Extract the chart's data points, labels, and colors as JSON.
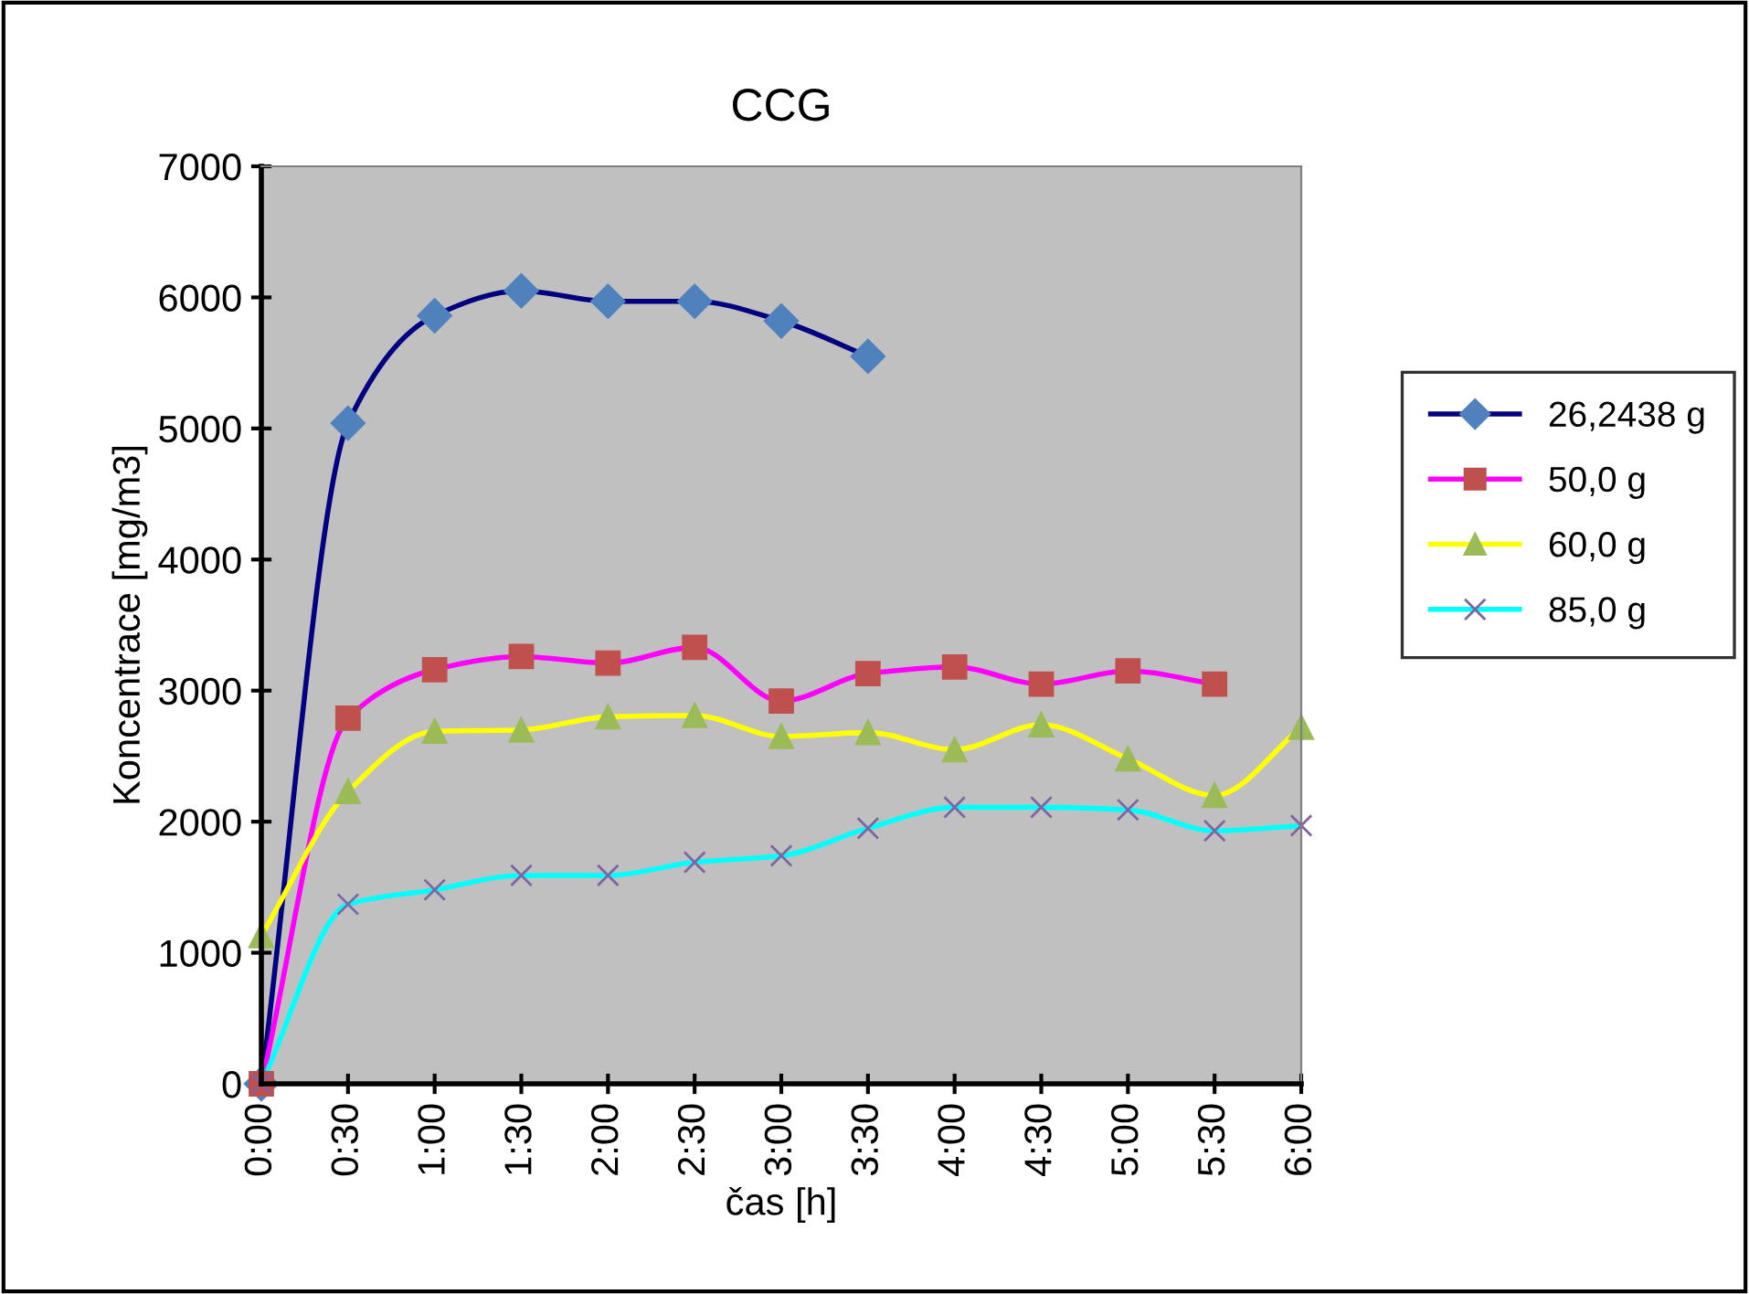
{
  "chart_data": {
    "type": "line",
    "title": "CCG",
    "xlabel": "čas [h]",
    "ylabel": "Koncentrace [mg/m3]",
    "categories": [
      "0:00",
      "0:30",
      "1:00",
      "1:30",
      "2:00",
      "2:30",
      "3:00",
      "3:30",
      "4:00",
      "4:30",
      "5:00",
      "5:30",
      "6:00"
    ],
    "series": [
      {
        "name": "26,2438 g",
        "color": "#000080",
        "colors": [
          "#4f81bd",
          "#4f81bd",
          "#4f81bd",
          "#4f81bd",
          "#4f81bd",
          "#4f81bd",
          "#4f81bd",
          "#4f81bd",
          "#4f81bd",
          "#4f81bd",
          "#4f81bd",
          "#4f81bd",
          "#4f81bd"
        ],
        "marker": "diamond",
        "values": [
          0,
          5040,
          5860,
          6050,
          5970,
          5970,
          5820,
          5550,
          null,
          null,
          null,
          null,
          null
        ]
      },
      {
        "name": "50,0 g",
        "color": "#ff00ff",
        "colors": [
          "#c0504d",
          "#c0504d",
          "#c0504d",
          "#c0504d",
          "#c0504d",
          "#c0504d",
          "#c0504d",
          "#c0504d",
          "#c0504d",
          "#c0504d",
          "#c0504d",
          "#c0504d",
          "#c0504d"
        ],
        "marker": "square",
        "values": [
          0,
          2790,
          3160,
          3260,
          3210,
          3330,
          2920,
          3130,
          3180,
          3050,
          3150,
          3050,
          null
        ]
      },
      {
        "name": "60,0 g",
        "color": "#ffff00",
        "colors": [
          "#9bbb59",
          "#9bbb59",
          "#9bbb59",
          "#9bbb59",
          "#9bbb59",
          "#9bbb59",
          "#9bbb59",
          "#9bbb59",
          "#9bbb59",
          "#9bbb59",
          "#9bbb59",
          "#9bbb59",
          "#9bbb59"
        ],
        "marker": "triangle",
        "values": [
          1130,
          2230,
          2690,
          2700,
          2800,
          2810,
          2650,
          2680,
          2550,
          2740,
          2480,
          2200,
          2720
        ]
      },
      {
        "name": "85,0 g",
        "color": "#00ffff",
        "colors": [
          "#8064a2",
          "#8064a2",
          "#8064a2",
          "#8064a2",
          "#8064a2",
          "#8064a2",
          "#8064a2",
          "#8064a2",
          "#8064a2",
          "#8064a2",
          "#8064a2",
          "#8064a2",
          "#8064a2"
        ],
        "marker": "cross",
        "values": [
          0,
          1370,
          1480,
          1590,
          1590,
          1690,
          1740,
          1950,
          2110,
          2110,
          2090,
          1930,
          1970
        ]
      }
    ],
    "ylim": [
      0,
      7000
    ],
    "yticks": [
      0,
      1000,
      2000,
      3000,
      4000,
      5000,
      6000,
      7000
    ],
    "grid": false,
    "legend": "right",
    "line_style": "solid"
  }
}
